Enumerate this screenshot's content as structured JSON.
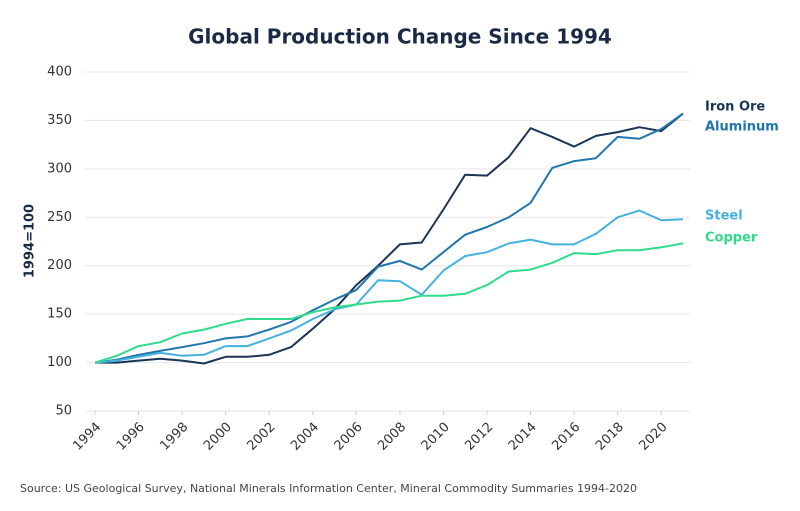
{
  "chart_data": {
    "type": "line",
    "title": "Global Production Change Since 1994",
    "ylabel": "1994=100",
    "source": "Source: US Geological Survey, National Minerals Information Center, Mineral Commodity Summaries 1994-2020",
    "x": [
      1994,
      1995,
      1996,
      1997,
      1998,
      1999,
      2000,
      2001,
      2002,
      2003,
      2004,
      2005,
      2006,
      2007,
      2008,
      2009,
      2010,
      2011,
      2012,
      2013,
      2014,
      2015,
      2016,
      2017,
      2018,
      2019,
      2020,
      2021
    ],
    "xlim": [
      1994,
      2021
    ],
    "xticks": [
      1994,
      1996,
      1998,
      2000,
      2002,
      2004,
      2006,
      2008,
      2010,
      2012,
      2014,
      2016,
      2018,
      2020
    ],
    "ylim": [
      50,
      400
    ],
    "yticks": [
      50,
      100,
      150,
      200,
      250,
      300,
      350,
      400
    ],
    "grid": true,
    "series": [
      {
        "name": "Iron Ore",
        "color": "#1b3556",
        "values": [
          100,
          100,
          102,
          104,
          102,
          99,
          106,
          106,
          108,
          116,
          135,
          155,
          180,
          200,
          222,
          224,
          258,
          294,
          293,
          312,
          342,
          333,
          323,
          334,
          338,
          343,
          339,
          357
        ]
      },
      {
        "name": "Aluminum",
        "color": "#2176ae",
        "values": [
          100,
          103,
          108,
          112,
          116,
          120,
          125,
          127,
          134,
          142,
          154,
          165,
          175,
          199,
          205,
          196,
          214,
          232,
          240,
          250,
          265,
          301,
          308,
          311,
          333,
          331,
          341,
          357
        ]
      },
      {
        "name": "Steel",
        "color": "#45b1df",
        "values": [
          100,
          102,
          106,
          110,
          107,
          108,
          117,
          117,
          125,
          133,
          145,
          155,
          160,
          185,
          184,
          170,
          195,
          210,
          214,
          223,
          227,
          222,
          222,
          233,
          250,
          257,
          247,
          248
        ]
      },
      {
        "name": "Copper",
        "color": "#2fdc8a",
        "values": [
          100,
          107,
          117,
          121,
          130,
          134,
          140,
          145,
          145,
          145,
          152,
          157,
          160,
          163,
          164,
          169,
          169,
          171,
          180,
          194,
          196,
          203,
          213,
          212,
          216,
          216,
          219,
          223
        ]
      }
    ]
  }
}
